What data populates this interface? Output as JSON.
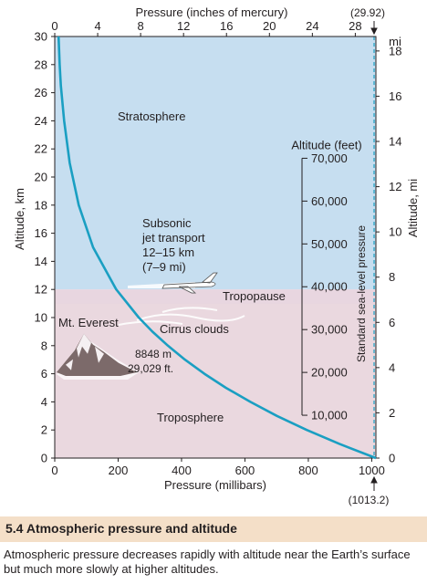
{
  "chart_data": {
    "type": "line",
    "top_axis": {
      "label": "Pressure (inches of mercury)",
      "ticks": [
        0,
        4,
        8,
        12,
        16,
        20,
        24,
        28
      ],
      "range": [
        0,
        29.92
      ],
      "marker_label": "(29.92)"
    },
    "bottom_axis": {
      "label": "Pressure (millibars)",
      "ticks": [
        0,
        200,
        400,
        600,
        800,
        1000
      ],
      "range": [
        0,
        1013.2
      ],
      "marker_label": "(1013.2)"
    },
    "left_axis": {
      "label": "Altitude, km",
      "ticks": [
        0,
        2,
        4,
        6,
        8,
        10,
        12,
        14,
        16,
        18,
        20,
        22,
        24,
        26,
        28,
        30
      ],
      "range": [
        0,
        30
      ]
    },
    "right_axis": {
      "label": "Altitude, mi",
      "unit_label": "mi",
      "ticks": [
        0,
        2,
        4,
        6,
        8,
        10,
        12,
        14,
        16,
        18
      ],
      "range": [
        0,
        18.64
      ]
    },
    "feet_scale": {
      "title": "Altitude (feet)",
      "ticks": [
        10000,
        20000,
        30000,
        40000,
        50000,
        60000,
        70000
      ],
      "tick_labels": [
        "10,000",
        "20,000",
        "30,000",
        "40,000",
        "50,000",
        "60,000",
        "70,000"
      ]
    },
    "series": [
      {
        "x": [
          1013.2,
          899,
          795,
          701,
          617,
          540,
          472,
          411,
          357,
          308,
          265,
          194,
          121,
          75.6,
          47.3,
          29.7,
          19.4,
          15.6,
          12.0
        ],
        "y": [
          0,
          1,
          2,
          3,
          4,
          5,
          6,
          7,
          8,
          9,
          10,
          12,
          15,
          18,
          21,
          24,
          26.5,
          28,
          30
        ]
      }
    ],
    "tropopause_km": 12,
    "regions": {
      "upper": "Stratosphere",
      "lower": "Troposphere",
      "boundary": "Tropopause"
    },
    "annotations": {
      "jet_line1": "Subsonic",
      "jet_line2": "jet transport",
      "jet_line3": "12–15 km",
      "jet_line4": "(7–9 mi)",
      "cirrus": "Cirrus clouds",
      "everest_name": "Mt. Everest",
      "everest_m": "8848 m",
      "everest_ft": "29,029 ft.",
      "sea_level": "Standard sea-level pressure"
    },
    "colors": {
      "stratosphere": "#c6def0",
      "troposphere": "#ead8df",
      "curve": "#1a9fc2",
      "dashed_line": "#1a9fc2"
    }
  },
  "caption": {
    "title": "5.4 Atmospheric pressure and altitude",
    "body": "Atmospheric pressure decreases rapidly with altitude near the Earth’s surface but much more slowly at higher altitudes."
  }
}
